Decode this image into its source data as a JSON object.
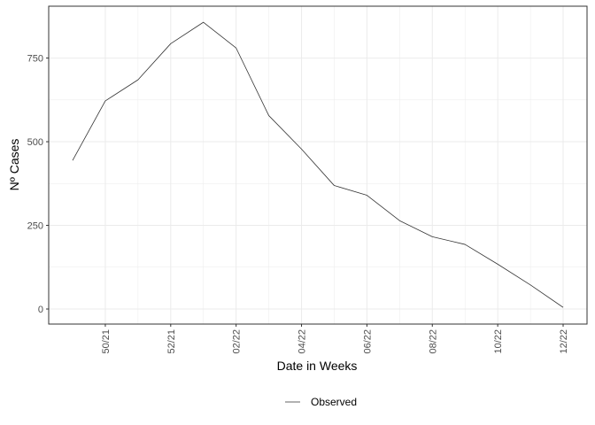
{
  "chart_data": {
    "type": "line",
    "xlabel": "Date in Weeks",
    "ylabel": "Nº Cases",
    "x_ticks": [
      "50/21",
      "52/21",
      "02/22",
      "04/22",
      "06/22",
      "08/22",
      "10/22",
      "12/22"
    ],
    "x": [
      "49/21",
      "50/21",
      "51/21",
      "52/21",
      "01/22",
      "02/22",
      "03/22",
      "04/22",
      "05/22",
      "06/22",
      "07/22",
      "08/22",
      "09/22",
      "10/22",
      "11/22",
      "12/22"
    ],
    "series": [
      {
        "name": "Observed",
        "color": "#333333",
        "values": [
          444,
          622,
          685,
          793,
          857,
          780,
          578,
          478,
          369,
          340,
          264,
          216,
          193,
          134,
          72,
          5
        ]
      }
    ],
    "y_ticks": [
      0,
      250,
      500,
      750
    ],
    "ylim": [
      -45,
      905
    ],
    "grid": true,
    "legend_position": "bottom"
  },
  "colors": {
    "grid": "#ebebeb",
    "panel_border": "#333333",
    "tick_text": "#4d4d4d"
  }
}
